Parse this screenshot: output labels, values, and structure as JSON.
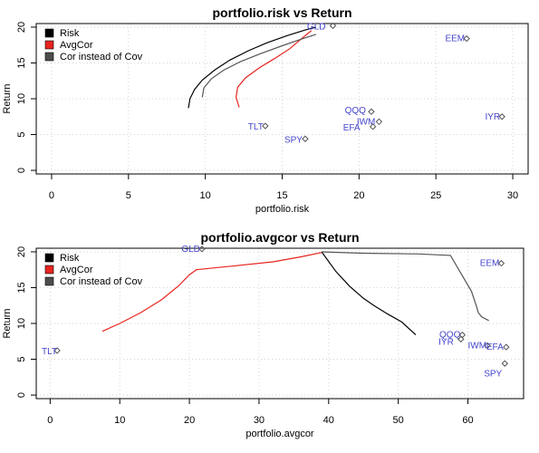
{
  "chart_data": [
    {
      "type": "line",
      "title": "portfolio.risk vs Return",
      "xlabel": "portfolio.risk",
      "ylabel": "Return",
      "xlim": [
        -1,
        31
      ],
      "ylim": [
        -0.5,
        20.5
      ],
      "xticks": [
        0,
        5,
        10,
        15,
        20,
        25,
        30
      ],
      "yticks": [
        0,
        5,
        10,
        15,
        20
      ],
      "grid": true,
      "legend_position": "top-left",
      "legend": [
        {
          "label": "Risk",
          "color": "#000000"
        },
        {
          "label": "AvgCor",
          "color": "#e8241f"
        },
        {
          "label": "Cor instead of Cov",
          "color": "#4d4d4d"
        }
      ],
      "series": [
        {
          "name": "Risk",
          "color": "#000000",
          "x": [
            8.9,
            9.0,
            9.3,
            9.8,
            10.6,
            11.6,
            12.8,
            14.0,
            15.3,
            16.5,
            17.2
          ],
          "y": [
            8.7,
            10.0,
            11.3,
            12.6,
            14.0,
            15.4,
            16.7,
            17.8,
            18.8,
            19.6,
            20.0
          ]
        },
        {
          "name": "AvgCor",
          "color": "#e8241f",
          "x": [
            12.2,
            12.0,
            12.1,
            12.6,
            13.5,
            14.5,
            15.5,
            16.2,
            16.9
          ],
          "y": [
            8.8,
            10.2,
            11.6,
            12.9,
            14.3,
            15.6,
            17.0,
            18.3,
            19.5
          ]
        },
        {
          "name": "Cor instead of Cov",
          "color": "#555555",
          "x": [
            9.8,
            9.9,
            10.4,
            11.2,
            12.3,
            13.6,
            15.0,
            16.2,
            17.2
          ],
          "y": [
            10.2,
            11.5,
            12.8,
            14.0,
            15.2,
            16.3,
            17.4,
            18.3,
            19.0
          ]
        }
      ],
      "points": [
        {
          "label": "GLD",
          "x": 18.3,
          "y": 20.2
        },
        {
          "label": "EEM",
          "x": 27.0,
          "y": 18.4
        },
        {
          "label": "QQQ",
          "x": 20.8,
          "y": 8.2
        },
        {
          "label": "IWM",
          "x": 21.3,
          "y": 6.8
        },
        {
          "label": "EFA",
          "x": 20.9,
          "y": 6.1
        },
        {
          "label": "IYR",
          "x": 29.3,
          "y": 7.5
        },
        {
          "label": "TLT",
          "x": 13.9,
          "y": 6.2
        },
        {
          "label": "SPY",
          "x": 16.5,
          "y": 4.4
        }
      ]
    },
    {
      "type": "line",
      "title": "portfolio.avgcor vs Return",
      "xlabel": "portfolio.avgcor",
      "ylabel": "Return",
      "xlim": [
        -2,
        68
      ],
      "ylim": [
        -0.5,
        20.5
      ],
      "xticks": [
        0,
        10,
        20,
        30,
        40,
        50,
        60
      ],
      "yticks": [
        0,
        5,
        10,
        15,
        20
      ],
      "grid": true,
      "legend_position": "top-left",
      "legend": [
        {
          "label": "Risk",
          "color": "#000000"
        },
        {
          "label": "AvgCor",
          "color": "#e8241f"
        },
        {
          "label": "Cor instead of Cov",
          "color": "#4d4d4d"
        }
      ],
      "series": [
        {
          "name": "AvgCor",
          "color": "#e8241f",
          "x": [
            7.5,
            10.0,
            13.0,
            16.0,
            18.5,
            20.0,
            21.0,
            26.0,
            32.0,
            36.0,
            39.0
          ],
          "y": [
            8.9,
            10.0,
            11.5,
            13.3,
            15.3,
            16.8,
            17.5,
            18.0,
            18.6,
            19.3,
            19.9
          ]
        },
        {
          "name": "Risk",
          "color": "#000000",
          "x": [
            39.0,
            41.0,
            43.0,
            45.0,
            46.5,
            48.5,
            50.5,
            52.5
          ],
          "y": [
            20.0,
            17.3,
            15.2,
            13.5,
            12.5,
            11.3,
            10.2,
            8.4
          ]
        },
        {
          "name": "Cor instead of Cov",
          "color": "#555555",
          "x": [
            39.0,
            45.0,
            53.0,
            57.5,
            59.0,
            60.5,
            61.2,
            61.5,
            62.0,
            63.0
          ],
          "y": [
            20.0,
            19.8,
            19.7,
            19.5,
            17.0,
            14.5,
            12.5,
            11.5,
            10.9,
            10.4
          ]
        }
      ],
      "points": [
        {
          "label": "GLD",
          "x": 21.8,
          "y": 20.4
        },
        {
          "label": "EEM",
          "x": 64.8,
          "y": 18.4
        },
        {
          "label": "QQQ",
          "x": 59.2,
          "y": 8.4
        },
        {
          "label": "IYR",
          "x": 59.0,
          "y": 7.8
        },
        {
          "label": "IWM",
          "x": 62.8,
          "y": 6.9
        },
        {
          "label": "EFA",
          "x": 65.5,
          "y": 6.7
        },
        {
          "label": "TLT",
          "x": 1.0,
          "y": 6.2
        },
        {
          "label": "SPY",
          "x": 65.3,
          "y": 4.4
        }
      ]
    }
  ]
}
